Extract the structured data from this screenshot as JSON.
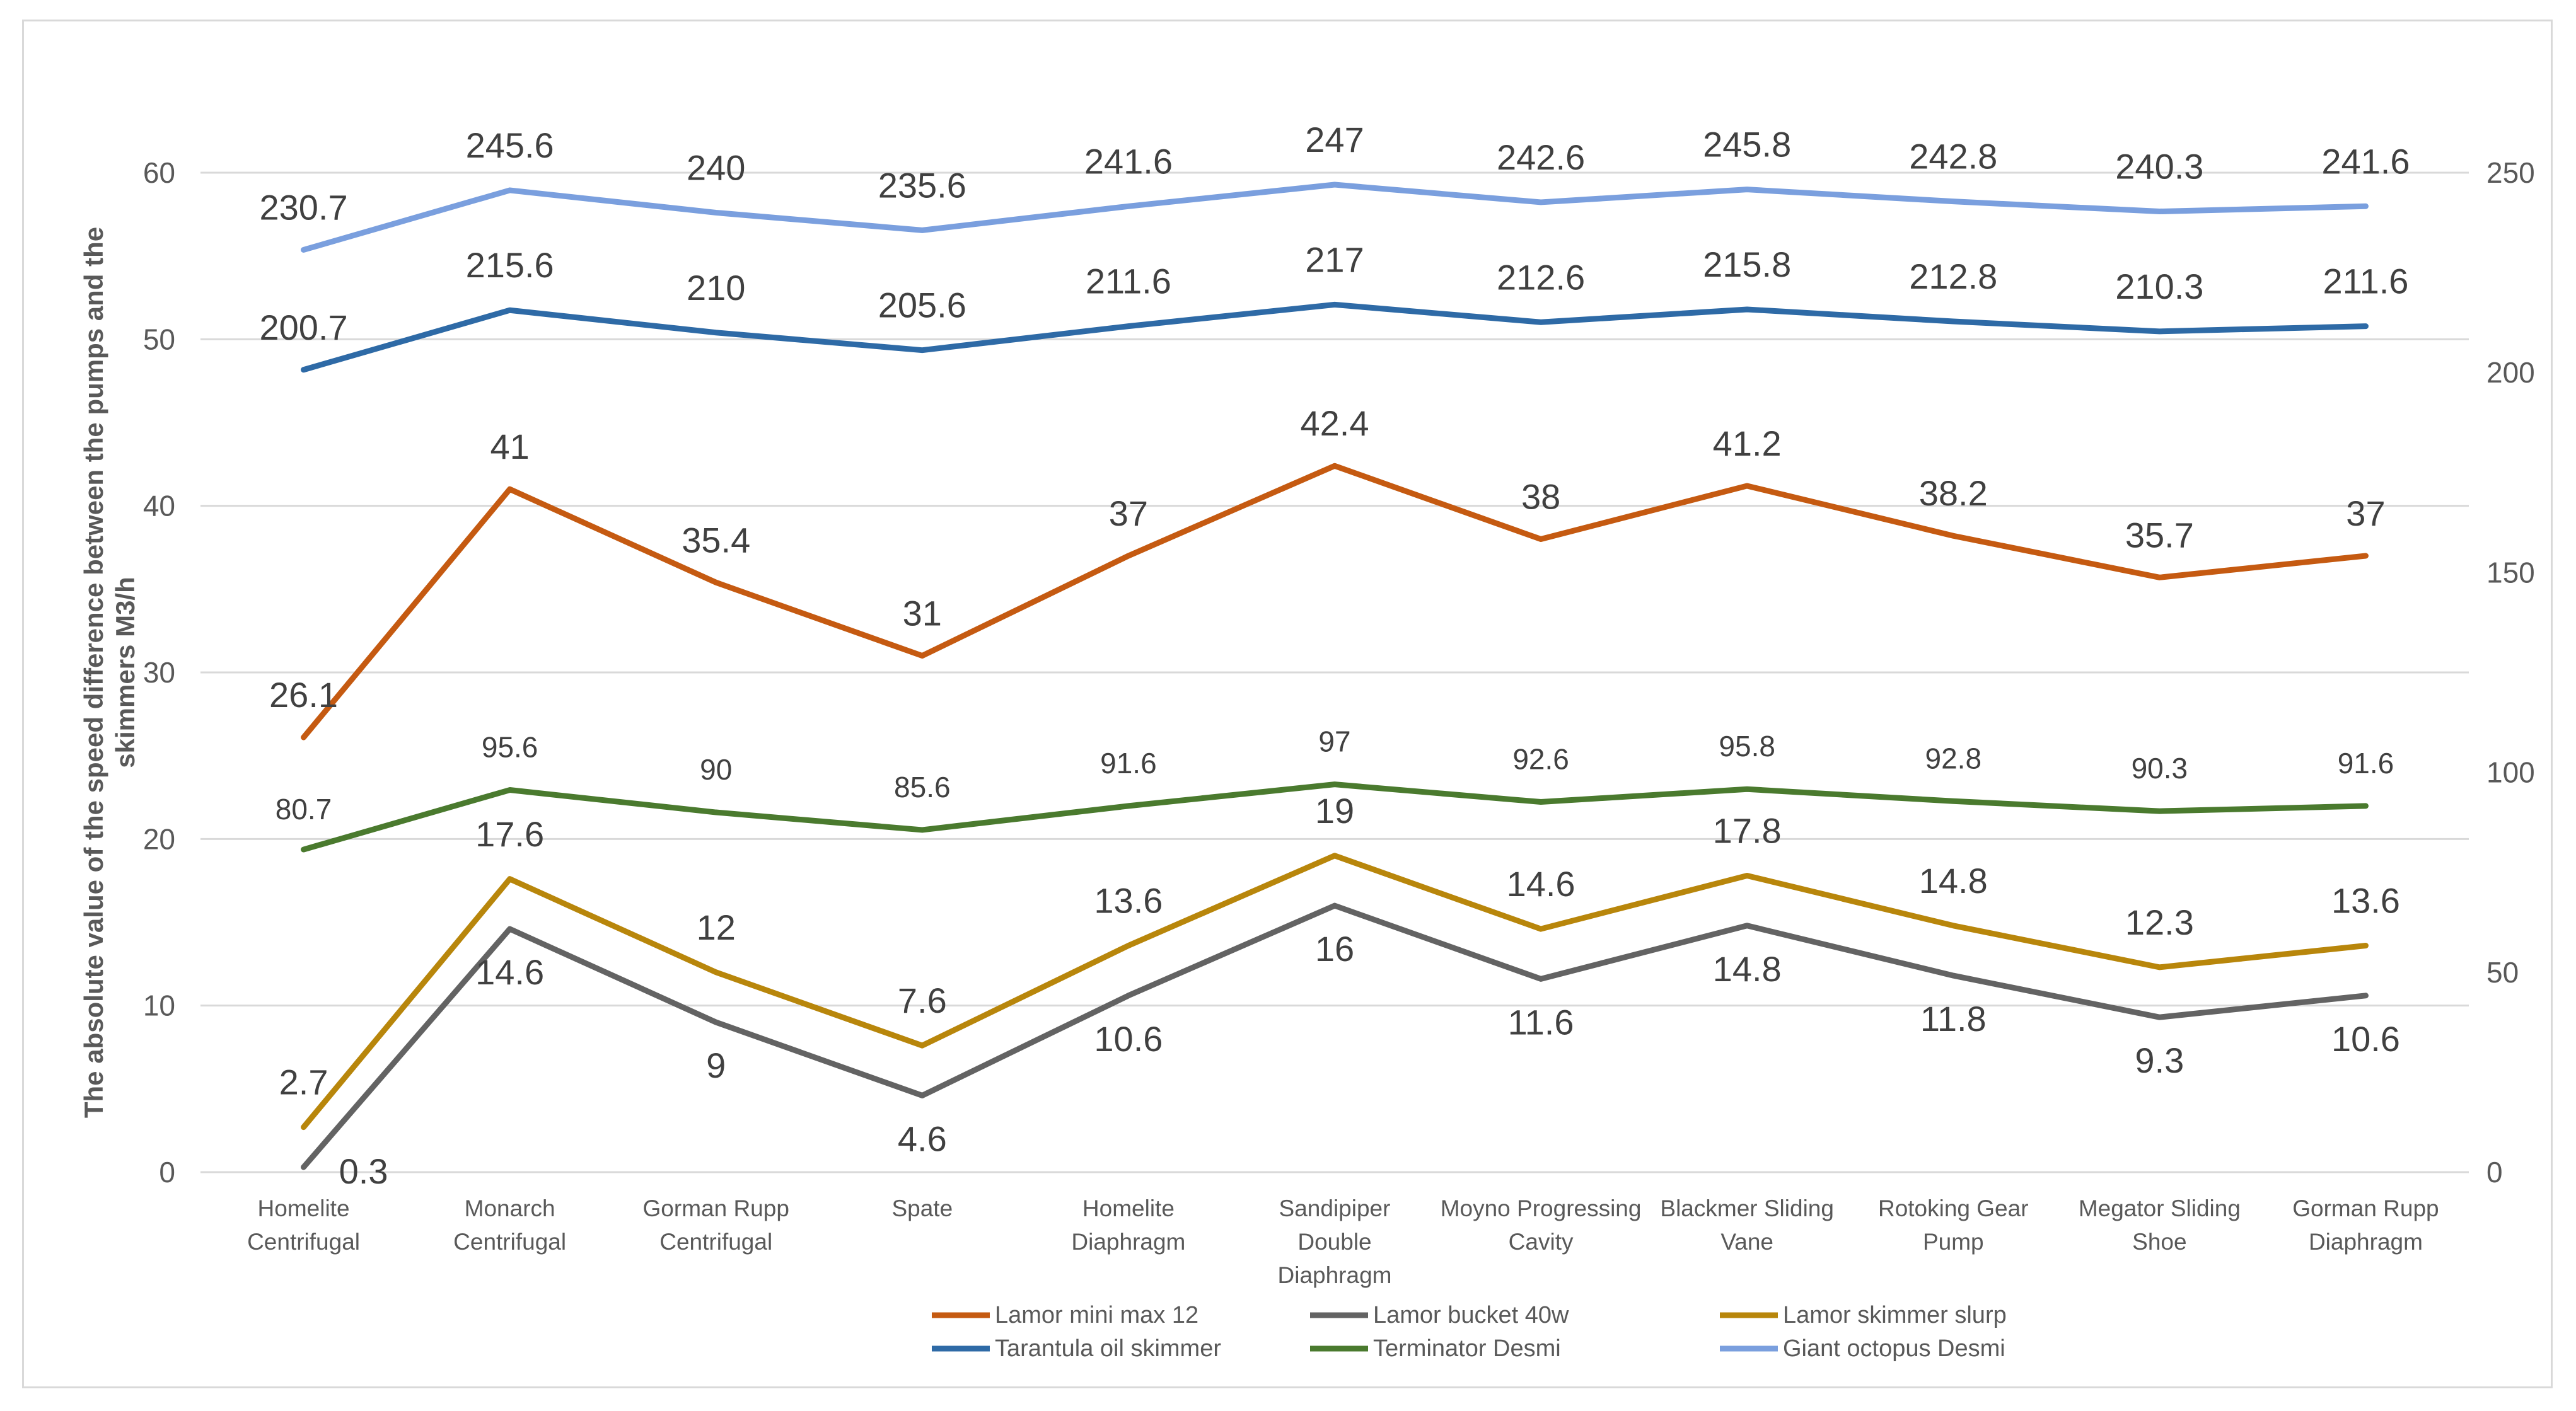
{
  "chart_data": {
    "type": "line",
    "title": "",
    "xlabel": "",
    "ylabel": "The absolute value of the speed difference between the pumps and the skimmers M3/h",
    "categories": [
      "Homelite Centrifugal",
      "Monarch Centrifugal",
      "Gorman Rupp Centrifugal",
      "Spate",
      "Homelite Diaphragm",
      "Sandipiper Double Diaphragm",
      "Moyno Progressing Cavity",
      "Blackmer Sliding Vane",
      "Rotoking Gear Pump",
      "Megator Sliding Shoe",
      "Gorman Rupp Diaphragm"
    ],
    "y_left": {
      "min": 0,
      "max": 60,
      "ticks": [
        "0",
        "10",
        "20",
        "30",
        "40",
        "50",
        "60"
      ]
    },
    "y_right": {
      "min": 0,
      "max": 250,
      "ticks": [
        "0",
        "50",
        "100",
        "150",
        "200",
        "250"
      ]
    },
    "grid": true,
    "legend_position": "bottom",
    "series": [
      {
        "name": "Lamor mini max 12",
        "color": "#c55a11",
        "axis": "left",
        "values": [
          26.1,
          41,
          35.4,
          31,
          37,
          42.4,
          38,
          41.2,
          38.2,
          35.7,
          37
        ],
        "labels": [
          "26.1",
          "41",
          "35.4",
          "31",
          "37",
          "42.4",
          "38",
          "41.2",
          "38.2",
          "35.7",
          "37"
        ]
      },
      {
        "name": "Lamor bucket 40w",
        "color": "#636363",
        "axis": "left",
        "values": [
          0.3,
          14.6,
          9,
          4.6,
          10.6,
          16,
          11.6,
          14.8,
          11.8,
          9.3,
          10.6
        ],
        "labels": [
          "0.3",
          "14.6",
          "9",
          "4.6",
          "10.6",
          "16",
          "11.6",
          "14.8",
          "11.8",
          "9.3",
          "10.6"
        ]
      },
      {
        "name": "Lamor skimmer slurp",
        "color": "#b8860b",
        "axis": "left",
        "values": [
          2.7,
          17.6,
          12,
          7.6,
          13.6,
          19,
          14.6,
          17.8,
          14.8,
          12.3,
          13.6
        ],
        "labels": [
          "2.7",
          "17.6",
          "12",
          "7.6",
          "13.6",
          "19",
          "14.6",
          "17.8",
          "14.8",
          "12.3",
          "13.6"
        ]
      },
      {
        "name": "Tarantula oil skimmer",
        "color": "#2e6aa6",
        "axis": "right",
        "values": [
          200.7,
          215.6,
          210,
          205.6,
          211.6,
          217,
          212.6,
          215.8,
          212.8,
          210.3,
          211.6
        ],
        "labels": [
          "200.7",
          "215.6",
          "210",
          "205.6",
          "211.6",
          "217",
          "212.6",
          "215.8",
          "212.8",
          "210.3",
          "211.6"
        ]
      },
      {
        "name": "Terminator Desmi",
        "color": "#4a7a2e",
        "axis": "right",
        "values": [
          80.7,
          95.6,
          90,
          85.6,
          91.6,
          97,
          92.6,
          95.8,
          92.8,
          90.3,
          91.6
        ],
        "labels": [
          "80.7",
          "95.6",
          "90",
          "85.6",
          "91.6",
          "97",
          "92.6",
          "95.8",
          "92.8",
          "90.3",
          "91.6"
        ]
      },
      {
        "name": "Giant octopus Desmi",
        "color": "#7a9fde",
        "axis": "right",
        "values": [
          230.7,
          245.6,
          240,
          235.6,
          241.6,
          247,
          242.6,
          245.8,
          242.8,
          240.3,
          241.6
        ],
        "labels": [
          "230.7",
          "245.6",
          "240",
          "235.6",
          "241.6",
          "247",
          "242.6",
          "245.8",
          "242.8",
          "240.3",
          "241.6"
        ]
      }
    ]
  }
}
